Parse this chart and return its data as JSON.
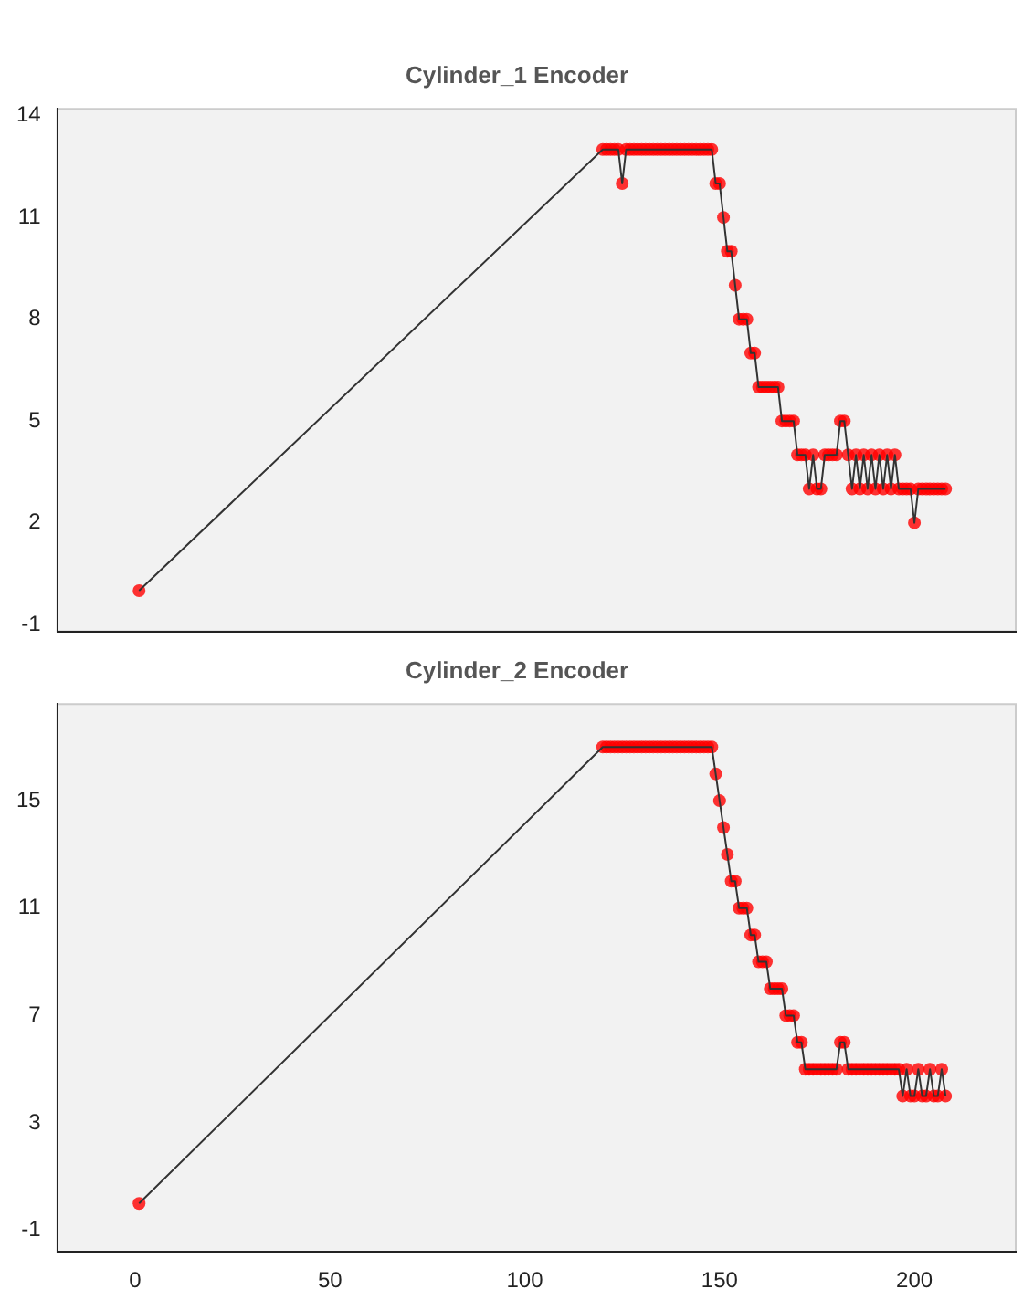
{
  "chart_data": [
    {
      "type": "line",
      "title": "Cylinder_1 Encoder",
      "marker": "circle",
      "tick_labels": "y",
      "x": [
        1,
        120,
        121,
        122,
        123,
        124,
        125,
        126,
        127,
        128,
        129,
        130,
        131,
        132,
        133,
        134,
        135,
        136,
        137,
        138,
        139,
        140,
        141,
        142,
        143,
        144,
        145,
        146,
        147,
        148,
        149,
        150,
        151,
        152,
        153,
        154,
        155,
        156,
        157,
        158,
        159,
        160,
        161,
        162,
        163,
        164,
        165,
        166,
        167,
        168,
        169,
        170,
        171,
        172,
        173,
        174,
        175,
        176,
        177,
        178,
        179,
        180,
        181,
        182,
        183,
        184,
        185,
        186,
        187,
        188,
        189,
        190,
        191,
        192,
        193,
        194,
        195,
        196,
        197,
        198,
        199,
        200,
        201,
        202,
        203,
        204,
        205,
        206,
        207,
        208
      ],
      "series": [
        {
          "color": "#ff0000",
          "values": [
            0,
            13,
            13,
            13,
            13,
            13,
            12,
            13,
            13,
            13,
            13,
            13,
            13,
            13,
            13,
            13,
            13,
            13,
            13,
            13,
            13,
            13,
            13,
            13,
            13,
            13,
            13,
            13,
            13,
            13,
            12,
            12,
            11,
            10,
            10,
            9,
            8,
            8,
            8,
            7,
            7,
            6,
            6,
            6,
            6,
            6,
            6,
            5,
            5,
            5,
            5,
            4,
            4,
            4,
            3,
            4,
            3,
            3,
            4,
            4,
            4,
            4,
            5,
            5,
            4,
            3,
            4,
            3,
            4,
            3,
            4,
            3,
            4,
            3,
            4,
            3,
            4,
            3,
            3,
            3,
            3,
            2,
            3,
            3,
            3,
            3,
            3,
            3,
            3,
            3
          ]
        }
      ],
      "xlim": [
        -20,
        226
      ],
      "xticks": [
        0,
        50,
        100,
        150,
        200
      ],
      "ylim": [
        -1.2,
        14.2
      ],
      "yticks": [
        -1,
        2,
        5,
        8,
        11,
        14
      ]
    },
    {
      "type": "line",
      "title": "Cylinder_2 Encoder",
      "marker": "circle",
      "x": [
        1,
        120,
        121,
        122,
        123,
        124,
        125,
        126,
        127,
        128,
        129,
        130,
        131,
        132,
        133,
        134,
        135,
        136,
        137,
        138,
        139,
        140,
        141,
        142,
        143,
        144,
        145,
        146,
        147,
        148,
        149,
        150,
        151,
        152,
        153,
        154,
        155,
        156,
        157,
        158,
        159,
        160,
        161,
        162,
        163,
        164,
        165,
        166,
        167,
        168,
        169,
        170,
        171,
        172,
        173,
        174,
        175,
        176,
        177,
        178,
        179,
        180,
        181,
        182,
        183,
        184,
        185,
        186,
        187,
        188,
        189,
        190,
        191,
        192,
        193,
        194,
        195,
        196,
        197,
        198,
        199,
        200,
        201,
        202,
        203,
        204,
        205,
        206,
        207,
        208
      ],
      "series": [
        {
          "color": "#ff0000",
          "values": [
            0,
            17,
            17,
            17,
            17,
            17,
            17,
            17,
            17,
            17,
            17,
            17,
            17,
            17,
            17,
            17,
            17,
            17,
            17,
            17,
            17,
            17,
            17,
            17,
            17,
            17,
            17,
            17,
            17,
            17,
            16,
            15,
            14,
            13,
            12,
            12,
            11,
            11,
            11,
            10,
            10,
            9,
            9,
            9,
            8,
            8,
            8,
            8,
            7,
            7,
            7,
            6,
            6,
            5,
            5,
            5,
            5,
            5,
            5,
            5,
            5,
            5,
            6,
            6,
            5,
            5,
            5,
            5,
            5,
            5,
            5,
            5,
            5,
            5,
            5,
            5,
            5,
            5,
            4,
            5,
            4,
            4,
            5,
            4,
            4,
            5,
            4,
            4,
            5,
            4
          ]
        }
      ],
      "xlim": [
        -20,
        226
      ],
      "xticks": [
        0,
        50,
        100,
        150,
        200
      ],
      "ylim": [
        -1.8,
        18.6
      ],
      "yticks": [
        -1,
        3,
        7,
        11,
        15
      ]
    }
  ]
}
